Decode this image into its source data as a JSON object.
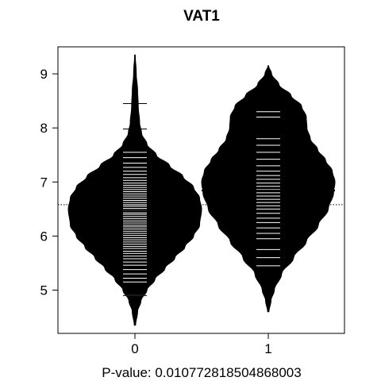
{
  "chart_data": {
    "type": "beanplot",
    "title": "VAT1",
    "xlabel": "P-value: 0.010772818504868003",
    "ylabel": "",
    "categories": [
      "0",
      "1"
    ],
    "ylim": [
      4.2,
      9.5
    ],
    "yticks": [
      5,
      6,
      7,
      8,
      9
    ],
    "overall_mean": 6.58,
    "grid": false,
    "beans": [
      {
        "category": "0",
        "mean": 6.46,
        "range": [
          4.35,
          9.35
        ],
        "density": [
          [
            4.35,
            0.01
          ],
          [
            4.6,
            0.04
          ],
          [
            4.8,
            0.09
          ],
          [
            5.0,
            0.18
          ],
          [
            5.2,
            0.3
          ],
          [
            5.4,
            0.45
          ],
          [
            5.6,
            0.6
          ],
          [
            5.8,
            0.75
          ],
          [
            6.0,
            0.88
          ],
          [
            6.2,
            0.97
          ],
          [
            6.5,
            1.0
          ],
          [
            6.7,
            0.97
          ],
          [
            6.9,
            0.88
          ],
          [
            7.1,
            0.72
          ],
          [
            7.3,
            0.52
          ],
          [
            7.5,
            0.32
          ],
          [
            7.7,
            0.18
          ],
          [
            7.9,
            0.1
          ],
          [
            8.1,
            0.07
          ],
          [
            8.4,
            0.05
          ],
          [
            8.7,
            0.04
          ],
          [
            9.0,
            0.02
          ],
          [
            9.35,
            0.005
          ]
        ],
        "observations": [
          4.9,
          5.15,
          5.22,
          5.3,
          5.38,
          5.46,
          5.52,
          5.58,
          5.63,
          5.68,
          5.72,
          5.77,
          5.81,
          5.85,
          5.89,
          5.93,
          5.97,
          6.01,
          6.05,
          6.09,
          6.13,
          6.17,
          6.2,
          6.24,
          6.28,
          6.32,
          6.36,
          6.4,
          6.43,
          6.47,
          6.51,
          6.55,
          6.58,
          6.62,
          6.66,
          6.7,
          6.74,
          6.78,
          6.82,
          6.86,
          6.9,
          6.94,
          6.98,
          7.03,
          7.08,
          7.14,
          7.2,
          7.27,
          7.35,
          7.45,
          7.55,
          7.98,
          8.45
        ]
      },
      {
        "category": "1",
        "mean": 6.84,
        "range": [
          4.6,
          9.15
        ],
        "density": [
          [
            4.6,
            0.01
          ],
          [
            4.8,
            0.04
          ],
          [
            5.0,
            0.09
          ],
          [
            5.3,
            0.2
          ],
          [
            5.6,
            0.38
          ],
          [
            5.9,
            0.57
          ],
          [
            6.2,
            0.75
          ],
          [
            6.5,
            0.9
          ],
          [
            6.8,
            0.98
          ],
          [
            7.0,
            1.0
          ],
          [
            7.2,
            0.96
          ],
          [
            7.4,
            0.86
          ],
          [
            7.6,
            0.74
          ],
          [
            7.8,
            0.63
          ],
          [
            8.0,
            0.58
          ],
          [
            8.2,
            0.57
          ],
          [
            8.4,
            0.5
          ],
          [
            8.6,
            0.34
          ],
          [
            8.8,
            0.16
          ],
          [
            9.0,
            0.05
          ],
          [
            9.15,
            0.005
          ]
        ],
        "observations": [
          5.45,
          5.6,
          5.75,
          5.95,
          6.05,
          6.15,
          6.25,
          6.33,
          6.42,
          6.5,
          6.56,
          6.62,
          6.68,
          6.74,
          6.8,
          6.86,
          6.92,
          6.98,
          7.05,
          7.12,
          7.2,
          7.3,
          7.42,
          7.55,
          7.68,
          7.8,
          8.2,
          8.3
        ]
      }
    ]
  }
}
